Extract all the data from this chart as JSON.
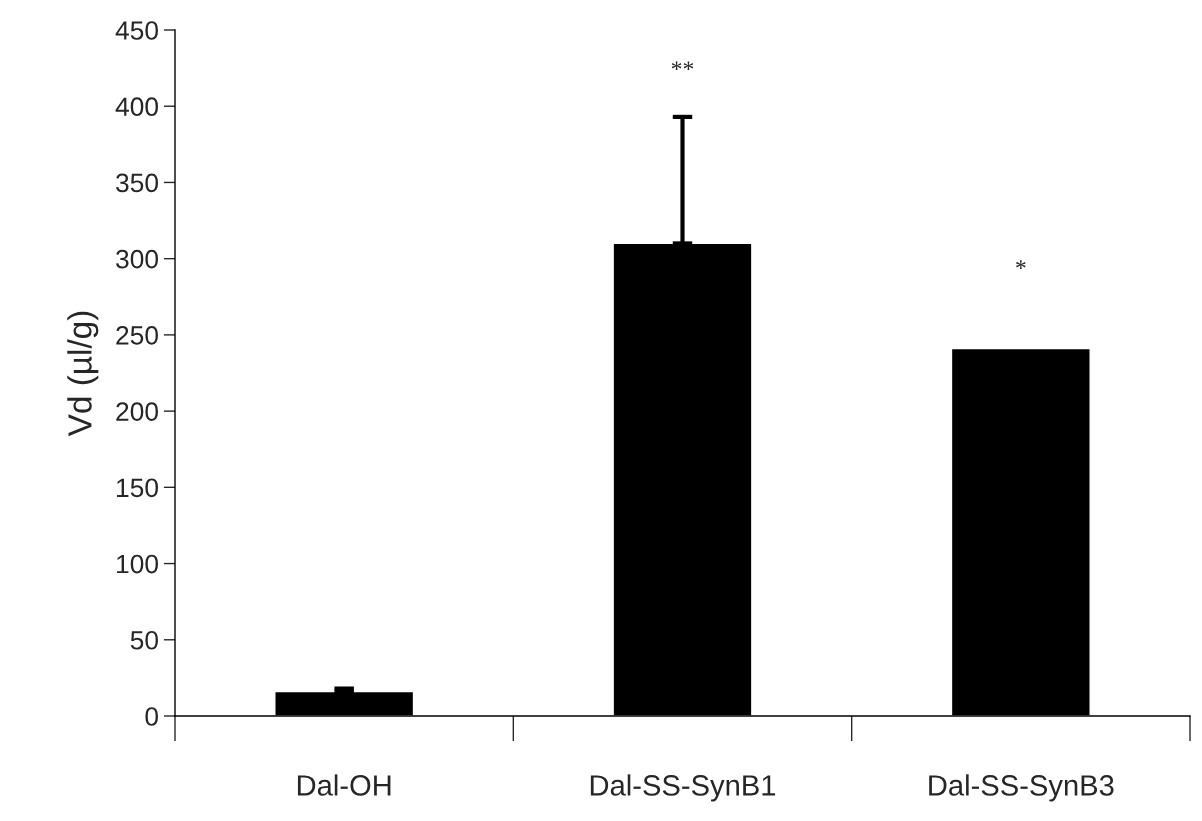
{
  "chart_data": {
    "type": "bar",
    "ylabel": "Vd (µl/g)",
    "categories": [
      "Dal-OH",
      "Dal-SS-SynB1",
      "Dal-SS-SynB3"
    ],
    "values": [
      16,
      310,
      241
    ],
    "color": "#000000",
    "errors": [
      [
        16,
        18
      ],
      [
        310,
        393
      ],
      null
    ],
    "ylim": [
      0,
      450
    ],
    "yticks": [
      0,
      50,
      100,
      150,
      200,
      250,
      300,
      350,
      400,
      450
    ],
    "grid": false,
    "legend": false,
    "annotations": [
      "**",
      "*"
    ]
  }
}
